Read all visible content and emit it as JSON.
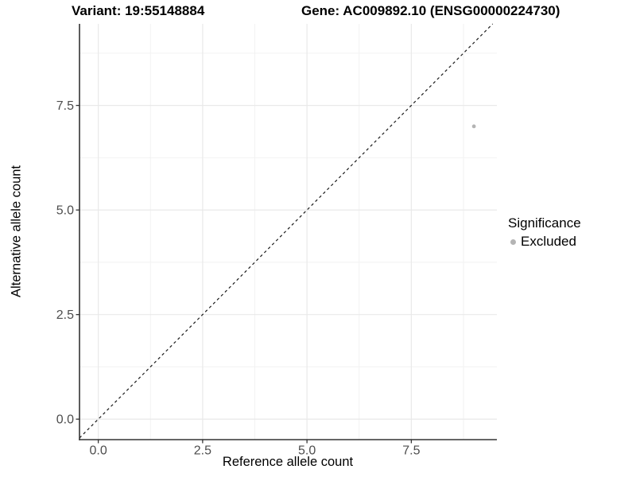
{
  "header": {
    "variant_title": "Variant: 19:55148884",
    "gene_title": "Gene: AC009892.10 (ENSG00000224730)"
  },
  "chart_data": {
    "type": "scatter",
    "xlabel": "Reference allele count",
    "ylabel": "Alternative allele count",
    "xlim": [
      -0.45,
      9.55
    ],
    "ylim": [
      -0.49,
      9.45
    ],
    "x_ticks": [
      0,
      2.5,
      5,
      7.5
    ],
    "x_tick_labels": [
      "0.0",
      "2.5",
      "5.0",
      "7.5"
    ],
    "y_ticks": [
      0,
      2.5,
      5,
      7.5
    ],
    "y_tick_labels": [
      "0.0",
      "2.5",
      "5.0",
      "7.5"
    ],
    "x_minor_ticks": [
      1.25,
      3.75,
      6.25,
      8.75
    ],
    "y_minor_ticks": [
      1.25,
      3.75,
      6.25,
      8.75
    ],
    "grid": "on",
    "points": [
      {
        "x": 9,
        "y": 7,
        "significance": "Excluded"
      }
    ],
    "identity_line": {
      "equation": "y = x",
      "style": "dashed"
    },
    "legend": {
      "title": "Significance",
      "position": "right",
      "entries": [
        {
          "label": "Excluded",
          "color": "#b4b4b4"
        }
      ]
    },
    "colors": {
      "point": "#b4b4b4",
      "grid_major": "#e9e9e9",
      "grid_minor": "#f2f2f2",
      "axis_line": "#333333",
      "tick_label": "#4d4d4d",
      "dashed_line": "#1a1a1a"
    }
  }
}
